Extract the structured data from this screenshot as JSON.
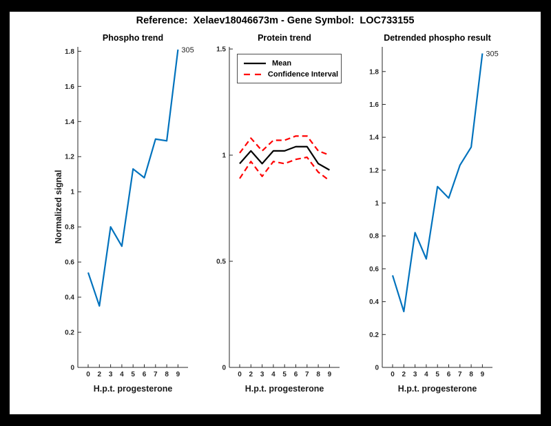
{
  "figure_title": "Reference:  Xelaev18046673m - Gene Symbol:  LOC733155",
  "colors": {
    "axis": "#262626",
    "blue": "#0072BD",
    "mean": "#000000",
    "ci": "#FF0000",
    "background": "#FFFFFF",
    "frame": "#000000"
  },
  "chart_data": [
    {
      "type": "line",
      "title": "Phospho trend",
      "xlabel": "H.p.t. progesterone",
      "ylabel": "Normalized signal",
      "categories": [
        "0",
        "2",
        "3",
        "4",
        "5",
        "6",
        "7",
        "8",
        "9"
      ],
      "ylim": [
        0,
        1.825
      ],
      "y_ticks": [
        0,
        0.2,
        0.4,
        0.6,
        0.8,
        1,
        1.2,
        1.4,
        1.6,
        1.8
      ],
      "y_tick_labels": [
        "0",
        "0.2",
        "0.4",
        "0.6",
        "0.8",
        "1",
        "1.2",
        "1.4",
        "1.6",
        "1.8"
      ],
      "grid": false,
      "series": [
        {
          "name": "phospho-signal",
          "color": "#0072BD",
          "style": "solid",
          "values": [
            0.54,
            0.35,
            0.8,
            0.69,
            1.13,
            1.08,
            1.3,
            1.29,
            1.81
          ]
        }
      ],
      "annotation": "305"
    },
    {
      "type": "line",
      "title": "Protein trend",
      "xlabel": "H.p.t. progesterone",
      "ylabel": "",
      "categories": [
        "0",
        "2",
        "3",
        "4",
        "5",
        "6",
        "7",
        "8",
        "9"
      ],
      "ylim": [
        0,
        1.51
      ],
      "y_ticks": [
        0,
        0.5,
        1,
        1.5
      ],
      "y_tick_labels": [
        "0",
        "0.5",
        "1",
        "1.5"
      ],
      "grid": false,
      "legend": [
        "Mean",
        "Confidence Interval"
      ],
      "legend_position": "top-left",
      "series": [
        {
          "name": "mean",
          "color": "#000000",
          "style": "solid",
          "values": [
            0.96,
            1.02,
            0.96,
            1.02,
            1.02,
            1.04,
            1.04,
            0.96,
            0.93
          ]
        },
        {
          "name": "ci-upper",
          "color": "#FF0000",
          "style": "dashed",
          "values": [
            1.01,
            1.08,
            1.02,
            1.07,
            1.07,
            1.09,
            1.09,
            1.02,
            1.0
          ]
        },
        {
          "name": "ci-lower",
          "color": "#FF0000",
          "style": "dashed",
          "values": [
            0.89,
            0.97,
            0.9,
            0.97,
            0.96,
            0.98,
            0.99,
            0.92,
            0.88
          ]
        }
      ]
    },
    {
      "type": "line",
      "title": "Detrended phospho result",
      "xlabel": "H.p.t. progesterone",
      "ylabel": "",
      "categories": [
        "0",
        "2",
        "3",
        "4",
        "5",
        "6",
        "7",
        "8",
        "9"
      ],
      "ylim": [
        0,
        1.95
      ],
      "y_ticks": [
        0,
        0.2,
        0.4,
        0.6,
        0.8,
        1,
        1.2,
        1.4,
        1.6,
        1.8
      ],
      "y_tick_labels": [
        "0",
        "0.2",
        "0.4",
        "0.6",
        "0.8",
        "1",
        "1.2",
        "1.4",
        "1.6",
        "1.8"
      ],
      "grid": false,
      "series": [
        {
          "name": "detrended-phospho",
          "color": "#0072BD",
          "style": "solid",
          "values": [
            0.56,
            0.34,
            0.82,
            0.66,
            1.1,
            1.03,
            1.23,
            1.34,
            1.91
          ]
        }
      ],
      "annotation": "305"
    }
  ]
}
